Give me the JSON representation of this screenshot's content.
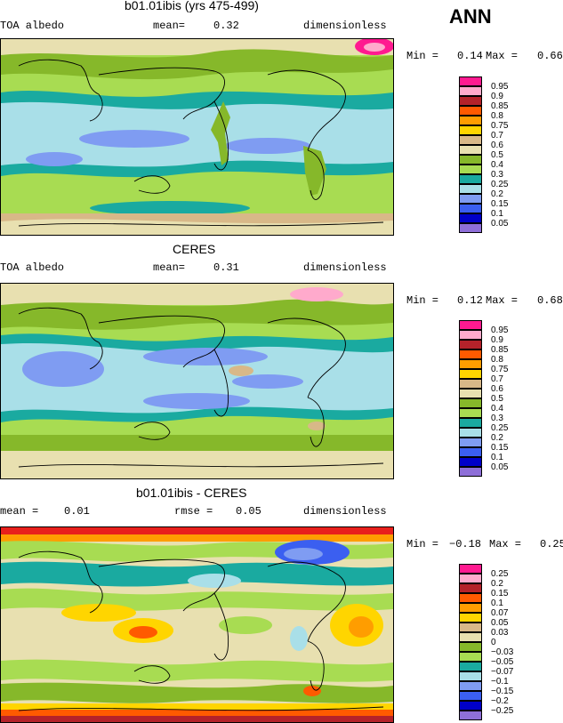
{
  "season": "ANN",
  "palette": [
    "#8e6fd8",
    "#0000c8",
    "#3b5ff0",
    "#7f9cf2",
    "#a9dfe8",
    "#1aaaa0",
    "#2db37f",
    "#86b82a",
    "#a8dc52",
    "#e8e0b0",
    "#d8b888",
    "#f2c818",
    "#ffd500",
    "#ff9d00",
    "#ff5a00",
    "#e8201c",
    "#b4222a",
    "#ffaacc",
    "#ff1a90"
  ],
  "panels": [
    {
      "title": "b01.01ibis (yrs 475-499)",
      "left_label": "TOA albedo",
      "mid_label": "mean=",
      "mid_value": "0.32",
      "right_label": "dimensionless",
      "min_label": "Min =",
      "min_value": "0.14",
      "max_label": "Max =",
      "max_value": "0.66",
      "levels": [
        "0.95",
        "0.9",
        "0.85",
        "0.8",
        "0.75",
        "0.7",
        "0.6",
        "0.5",
        "0.4",
        "0.3",
        "0.25",
        "0.2",
        "0.15",
        "0.1",
        "0.05"
      ],
      "level_colors": [
        "#ff1a90",
        "#ffaacc",
        "#b4222a",
        "#ff5a00",
        "#ff9d00",
        "#ffd500",
        "#d8b888",
        "#e8e0b0",
        "#86b82a",
        "#a8dc52",
        "#1aaaa0",
        "#a9dfe8",
        "#7f9cf2",
        "#3b5ff0",
        "#0000c8",
        "#8e6fd8"
      ]
    },
    {
      "title": "CERES",
      "left_label": "TOA albedo",
      "mid_label": "mean=",
      "mid_value": "0.31",
      "right_label": "dimensionless",
      "min_label": "Min =",
      "min_value": "0.12",
      "max_label": "Max =",
      "max_value": "0.68",
      "levels": [
        "0.95",
        "0.9",
        "0.85",
        "0.8",
        "0.75",
        "0.7",
        "0.6",
        "0.5",
        "0.4",
        "0.3",
        "0.25",
        "0.2",
        "0.15",
        "0.1",
        "0.05"
      ],
      "level_colors": [
        "#ff1a90",
        "#ffaacc",
        "#b4222a",
        "#ff5a00",
        "#ff9d00",
        "#ffd500",
        "#d8b888",
        "#e8e0b0",
        "#86b82a",
        "#a8dc52",
        "#1aaaa0",
        "#a9dfe8",
        "#7f9cf2",
        "#3b5ff0",
        "#0000c8",
        "#8e6fd8"
      ]
    },
    {
      "title": "b01.01ibis - CERES",
      "left_label": "mean =",
      "left_value": "0.01",
      "mid_label": "rmse =",
      "mid_value": "0.05",
      "right_label": "dimensionless",
      "min_label": "Min =",
      "min_value": "−0.18",
      "max_label": "Max =",
      "max_value": "0.25",
      "levels": [
        "0.25",
        "0.2",
        "0.15",
        "0.1",
        "0.07",
        "0.05",
        "0.03",
        "0",
        "−0.03",
        "−0.05",
        "−0.07",
        "−0.1",
        "−0.15",
        "−0.2",
        "−0.25"
      ],
      "level_colors": [
        "#ff1a90",
        "#ffaacc",
        "#b4222a",
        "#ff5a00",
        "#ff9d00",
        "#ffd500",
        "#d8b888",
        "#e8e0b0",
        "#86b82a",
        "#a8dc52",
        "#1aaaa0",
        "#a9dfe8",
        "#7f9cf2",
        "#3b5ff0",
        "#0000c8",
        "#8e6fd8"
      ]
    }
  ]
}
